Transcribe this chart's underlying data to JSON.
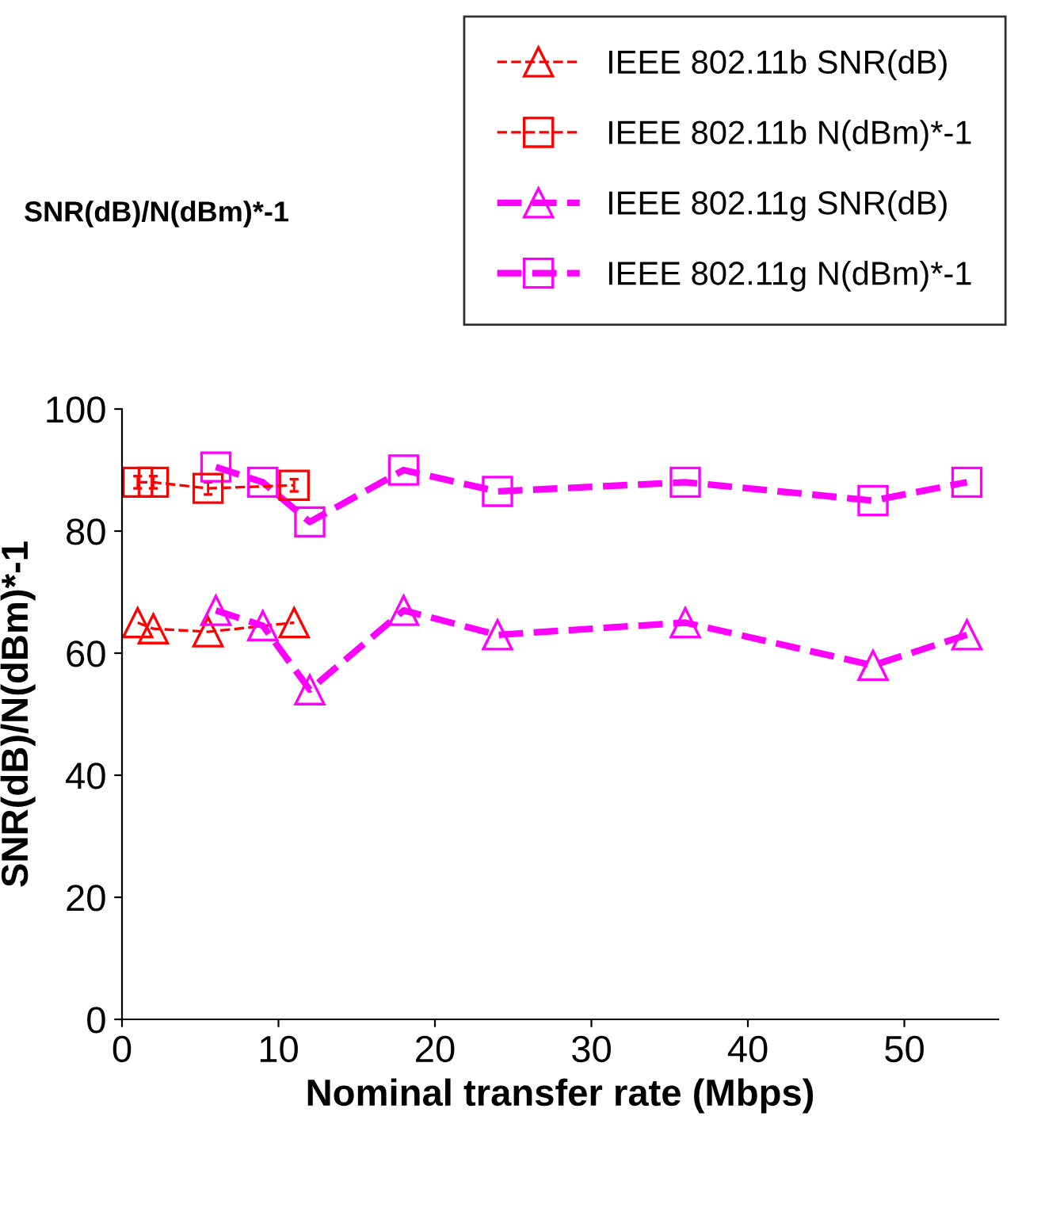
{
  "chart_data": {
    "type": "line",
    "title": "SNR(dB)/N(dBm)*-1",
    "xlabel": "Nominal transfer rate (Mbps)",
    "ylabel": "SNR(dB)/N(dBm)*-1",
    "series": [
      {
        "name": "IEEE 802.11b SNR(dB)",
        "color": "#ff0000",
        "x": [
          1,
          2,
          5.5,
          11
        ],
        "values": [
          65,
          64,
          63.5,
          65
        ],
        "marker": "triangle",
        "line_style": "dashed"
      },
      {
        "name": "IEEE 802.11b N(dBm)*-1",
        "color": "#ff0000",
        "x": [
          1,
          2,
          5.5,
          11
        ],
        "values": [
          88,
          88,
          87,
          87.5
        ],
        "errors": [
          1,
          1,
          1,
          1
        ],
        "marker": "square",
        "line_style": "dashed"
      },
      {
        "name": "IEEE 802.11g SNR(dB)",
        "color": "#ff00ff",
        "x": [
          6,
          9,
          12,
          18,
          24,
          36,
          48,
          54
        ],
        "values": [
          67,
          64.5,
          54,
          67,
          63,
          65,
          58,
          63
        ],
        "marker": "triangle",
        "line_style": "dashed"
      },
      {
        "name": "IEEE 802.11g N(dBm)*-1",
        "color": "#ff00ff",
        "x": [
          6,
          9,
          12,
          18,
          24,
          36,
          48,
          54
        ],
        "values": [
          90.5,
          88,
          81.5,
          90,
          86.5,
          88,
          85,
          88
        ],
        "marker": "square",
        "line_style": "dashed"
      }
    ],
    "xlim": [
      0,
      56
    ],
    "xticks": [
      0,
      10,
      20,
      30,
      40,
      50
    ],
    "ylim": [
      0,
      100
    ],
    "yticks": [
      0,
      20,
      40,
      60,
      80,
      100
    ],
    "grid": false,
    "legend": "top right"
  }
}
